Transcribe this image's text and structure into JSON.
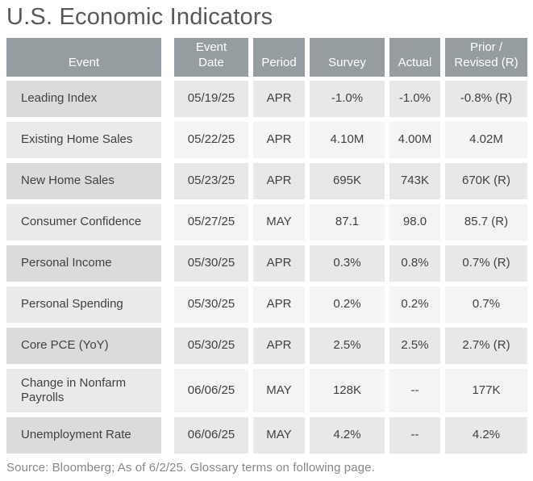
{
  "title": "U.S. Economic Indicators",
  "source_note": "Source: Bloomberg; As of 6/2/25. Glossary terms on following page.",
  "colors": {
    "header_bg": "#959DA0",
    "header_text": "#FFFFFF",
    "row_odd_event": "#DBDBD9",
    "row_odd_cell": "#E8E8E6",
    "row_even_event": "#EAEAE8",
    "row_even_cell": "#F4F4F2",
    "cell_text": "#414141",
    "title_text": "#57585B",
    "source_text": "#85878A",
    "page_bg": "#FFFFFF"
  },
  "table": {
    "headers": [
      {
        "label": "Event"
      },
      {
        "label": "Event\nDate"
      },
      {
        "label": "Period"
      },
      {
        "label": "Survey"
      },
      {
        "label": "Actual"
      },
      {
        "label": "Prior /\nRevised (R)"
      }
    ],
    "rows": [
      {
        "event": "Leading Index",
        "date": "05/19/25",
        "period": "APR",
        "survey": "-1.0%",
        "actual": "-1.0%",
        "prior": "-0.8% (R)"
      },
      {
        "event": "Existing Home Sales",
        "date": "05/22/25",
        "period": "APR",
        "survey": "4.10M",
        "actual": "4.00M",
        "prior": "4.02M"
      },
      {
        "event": "New Home Sales",
        "date": "05/23/25",
        "period": "APR",
        "survey": "695K",
        "actual": "743K",
        "prior": "670K (R)"
      },
      {
        "event": "Consumer Confidence",
        "date": "05/27/25",
        "period": "MAY",
        "survey": "87.1",
        "actual": "98.0",
        "prior": "85.7 (R)"
      },
      {
        "event": "Personal Income",
        "date": "05/30/25",
        "period": "APR",
        "survey": "0.3%",
        "actual": "0.8%",
        "prior": "0.7% (R)"
      },
      {
        "event": "Personal Spending",
        "date": "05/30/25",
        "period": "APR",
        "survey": "0.2%",
        "actual": "0.2%",
        "prior": "0.7%"
      },
      {
        "event": "Core PCE (YoY)",
        "date": "05/30/25",
        "period": "APR",
        "survey": "2.5%",
        "actual": "2.5%",
        "prior": "2.7% (R)"
      },
      {
        "event": "Change in Nonfarm Payrolls",
        "date": "06/06/25",
        "period": "MAY",
        "survey": "128K",
        "actual": "--",
        "prior": "177K"
      },
      {
        "event": "Unemployment Rate",
        "date": "06/06/25",
        "period": "MAY",
        "survey": "4.2%",
        "actual": "--",
        "prior": "4.2%"
      }
    ]
  }
}
